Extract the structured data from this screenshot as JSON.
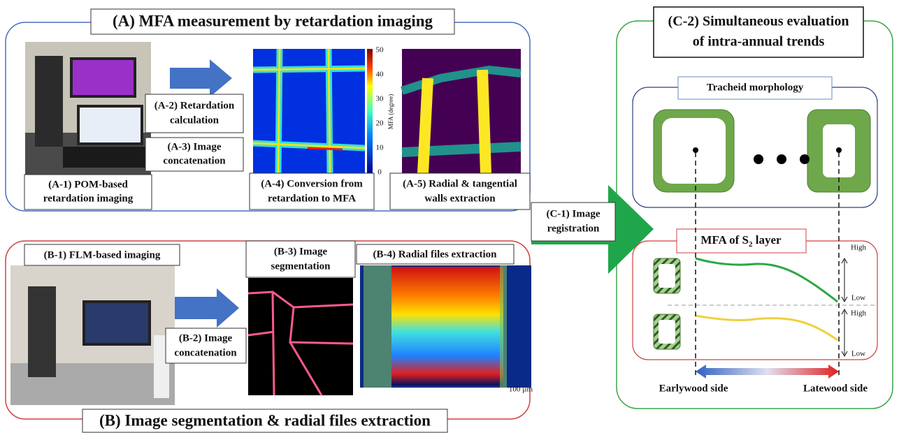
{
  "section_a": {
    "title": "(A) MFA measurement by retardation imaging",
    "a1": [
      "(A-1) POM-based",
      "retardation imaging"
    ],
    "a2": [
      "(A-2) Retardation",
      "calculation"
    ],
    "a3": [
      "(A-3) Image",
      "concatenation"
    ],
    "a4": [
      "(A-4) Conversion from",
      "retardation to MFA"
    ],
    "a5": [
      "(A-5)  Radial & tangential",
      "walls extraction"
    ],
    "colorbar_ticks": [
      "50",
      "40",
      "30",
      "20",
      "10",
      "0"
    ],
    "colorbar_label": "MFA (degree)"
  },
  "section_b": {
    "title": "(B) Image segmentation & radial files extraction",
    "b1": "(B-1) FLM-based imaging",
    "b2": [
      "(B-2) Image",
      "concatenation"
    ],
    "b3": [
      "(B-3) Image",
      "segmentation"
    ],
    "b4": "(B-4) Radial files extraction",
    "scale": "100 µm"
  },
  "section_c": {
    "c1": [
      "(C-1) Image",
      "registration"
    ],
    "c2": [
      "(C-2) Simultaneous evaluation",
      "of intra-annual trends"
    ],
    "morphology": "Tracheid morphology",
    "mfa_label": [
      "MFA of S",
      "2",
      " layer"
    ],
    "levels": [
      "High",
      "Low",
      "High",
      "Low"
    ],
    "earlywood": "Earlywood side",
    "latewood": "Latewood side"
  }
}
